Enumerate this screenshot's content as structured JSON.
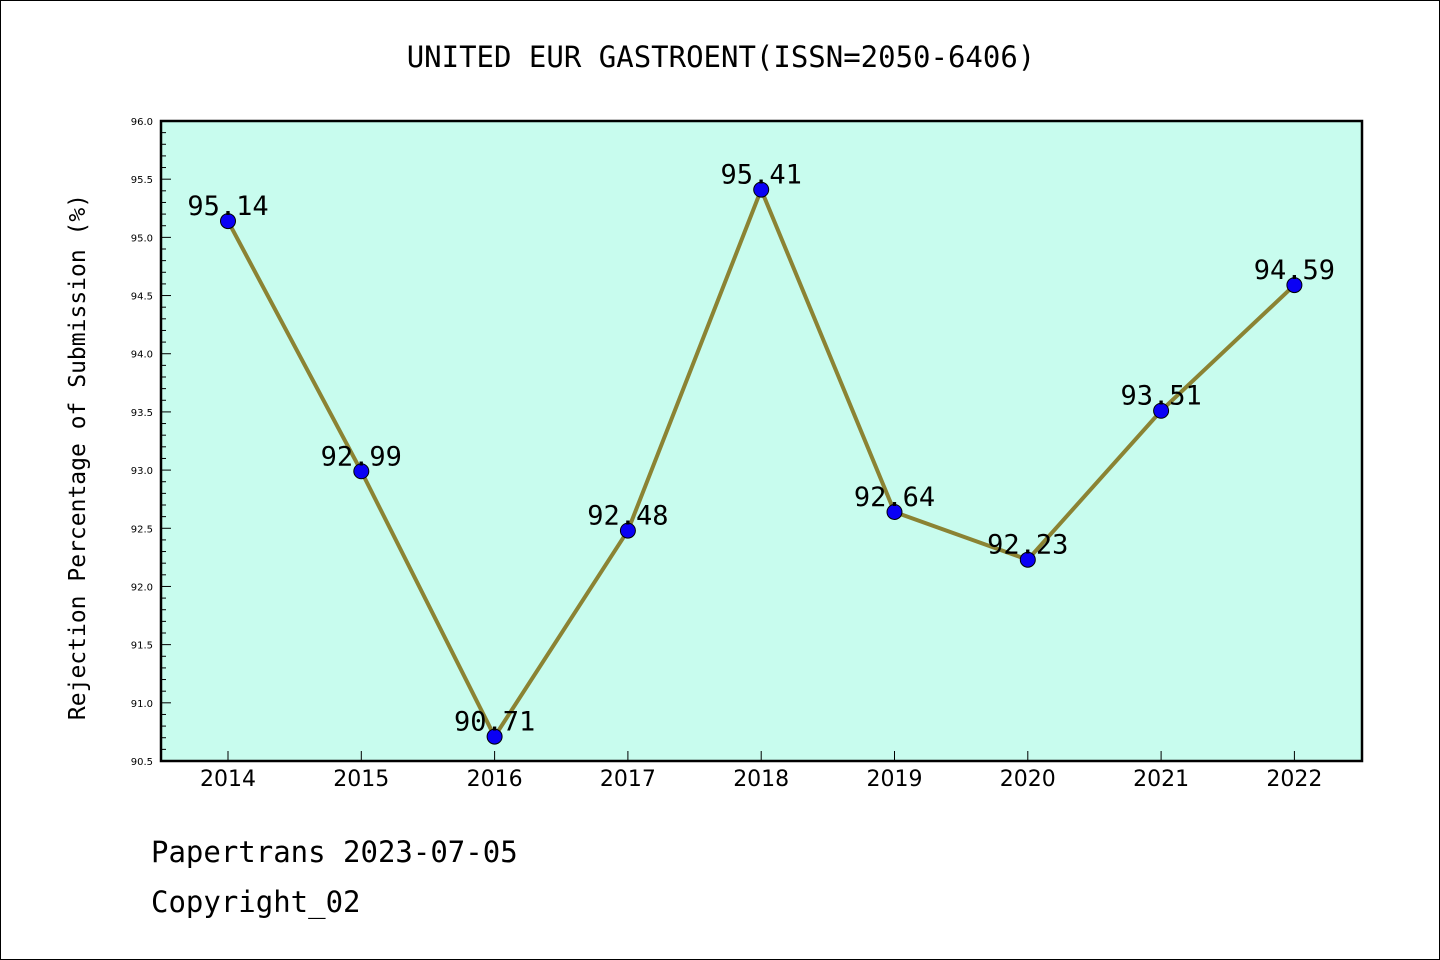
{
  "colors": {
    "plot_background": "#c8fcee",
    "line": "#8b8333",
    "marker": "#0a00f5",
    "axis": "#000000"
  },
  "chart_data": {
    "type": "line",
    "title": "UNITED EUR GASTROENT(ISSN=2050-6406)",
    "xlabel": "",
    "ylabel": "Rejection Percentage of Submission (%)",
    "categories": [
      "2014",
      "2015",
      "2016",
      "2017",
      "2018",
      "2019",
      "2020",
      "2021",
      "2022"
    ],
    "series": [
      {
        "values": [
          95.14,
          92.99,
          90.71,
          92.48,
          95.41,
          92.64,
          92.23,
          93.51,
          94.59
        ]
      }
    ],
    "data_labels": [
      "95.14",
      "92.99",
      "90.71",
      "92.48",
      "95.41",
      "92.64",
      "92.23",
      "93.51",
      "94.59"
    ],
    "ylim": [
      90.5,
      96.0
    ],
    "yticks": [
      "90.5",
      "91.0",
      "91.5",
      "92.0",
      "92.5",
      "93.0",
      "93.5",
      "94.0",
      "94.5",
      "95.0",
      "95.5",
      "96.0"
    ],
    "grid": false,
    "legend": "none"
  },
  "footer": {
    "line1": "Papertrans 2023-07-05",
    "line2": "Copyright_02"
  }
}
